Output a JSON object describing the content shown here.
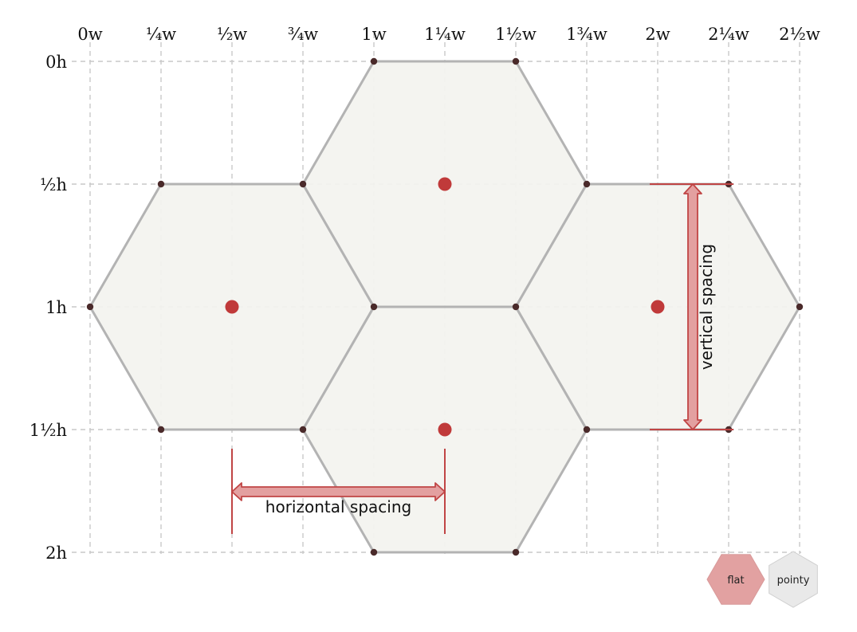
{
  "grid": {
    "column_labels": [
      "0w",
      "¼w",
      "½w",
      "¾w",
      "1w",
      "1¼w",
      "1½w",
      "1¾w",
      "2w",
      "2¼w",
      "2½w"
    ],
    "row_labels": [
      "0h",
      "½h",
      "1h",
      "1½h",
      "2h"
    ]
  },
  "annotations": {
    "horizontal_spacing": "horizontal spacing",
    "vertical_spacing": "vertical spacing"
  },
  "orientation_toggle": {
    "flat_label": "flat",
    "pointy_label": "pointy",
    "selected": "flat"
  },
  "colors": {
    "hex_fill": "#f3f3ef",
    "hex_stroke": "#b3b3b3",
    "vertex": "#4a2a2a",
    "center": "#c03a3a",
    "arrow_fill": "#e3a0a0",
    "arrow_stroke": "#c04545",
    "grid": "#c9c9c9",
    "toggle_selected": "#e2a1a1",
    "toggle_unselected": "#e9e9e9"
  }
}
